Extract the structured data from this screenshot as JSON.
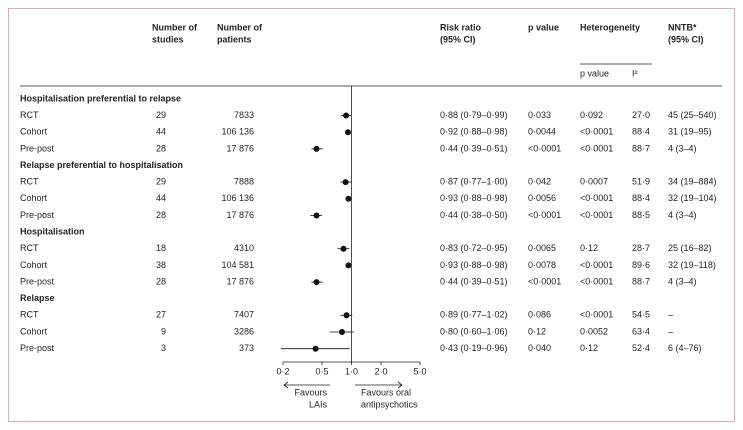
{
  "chart_data": {
    "type": "forest",
    "log_x": true,
    "xlim": [
      0.2,
      5
    ],
    "xticks": [
      {
        "value": 0.2,
        "label": "0·2"
      },
      {
        "value": 0.5,
        "label": "0·5"
      },
      {
        "value": 1,
        "label": "1·0"
      },
      {
        "value": 2,
        "label": "2·0"
      },
      {
        "value": 5,
        "label": "5·0"
      }
    ],
    "color": "#111111",
    "headers": {
      "studies": [
        "Number of",
        "studies"
      ],
      "patients": [
        "Number of",
        "patients"
      ],
      "rr": [
        "Risk ratio",
        "(95% CI)"
      ],
      "p": [
        "p value"
      ],
      "het": [
        "Heterogeneity"
      ],
      "het_p": [
        "p value"
      ],
      "i2": [
        "I²"
      ],
      "nntb": [
        "NNTB*",
        "(95% CI)"
      ]
    },
    "favours": {
      "left": [
        "Favours",
        "LAIs"
      ],
      "right": [
        "Favours oral",
        "antipsychotics"
      ]
    },
    "groups": [
      {
        "name": "Hospitalisation preferential to relapse",
        "rows": [
          {
            "label": "RCT",
            "studies": "29",
            "patients": "7833",
            "rr": 0.88,
            "ci": [
              0.79,
              0.99
            ],
            "rr_label": "0·88 (0·79–0·99)",
            "p": "0·033",
            "het_p": "0·092",
            "i2": "27·0",
            "nntb": "45 (25–540)"
          },
          {
            "label": "Cohort",
            "studies": "44",
            "patients": "106 136",
            "rr": 0.92,
            "ci": [
              0.88,
              0.98
            ],
            "rr_label": "0·92 (0·88–0·98)",
            "p": "0·0044",
            "het_p": "<0·0001",
            "i2": "88·4",
            "nntb": "31 (19–95)"
          },
          {
            "label": "Pre-post",
            "studies": "28",
            "patients": "17 876",
            "rr": 0.44,
            "ci": [
              0.39,
              0.51
            ],
            "rr_label": "0·44 (0·39–0·51)",
            "p": "<0·0001",
            "het_p": "<0·0001",
            "i2": "88·7",
            "nntb": "4 (3–4)"
          }
        ]
      },
      {
        "name": "Relapse preferential to hospitalisation",
        "rows": [
          {
            "label": "RCT",
            "studies": "29",
            "patients": "7888",
            "rr": 0.87,
            "ci": [
              0.77,
              1.0
            ],
            "rr_label": "0·87 (0·77–1·00)",
            "p": "0·042",
            "het_p": "0·0007",
            "i2": "51·9",
            "nntb": "34 (19–884)"
          },
          {
            "label": "Cohort",
            "studies": "44",
            "patients": "106 136",
            "rr": 0.93,
            "ci": [
              0.88,
              0.98
            ],
            "rr_label": "0·93 (0·88–0·98)",
            "p": "0·0056",
            "het_p": "<0·0001",
            "i2": "88·4",
            "nntb": "32 (19–104)"
          },
          {
            "label": "Pre-post",
            "studies": "28",
            "patients": "17 876",
            "rr": 0.44,
            "ci": [
              0.38,
              0.5
            ],
            "rr_label": "0·44 (0·38–0·50)",
            "p": "<0·0001",
            "het_p": "<0·0001",
            "i2": "88·5",
            "nntb": "4 (3–4)"
          }
        ]
      },
      {
        "name": "Hospitalisation",
        "rows": [
          {
            "label": "RCT",
            "studies": "18",
            "patients": "4310",
            "rr": 0.83,
            "ci": [
              0.72,
              0.95
            ],
            "rr_label": "0·83 (0·72–0·95)",
            "p": "0·0065",
            "het_p": "0·12",
            "i2": "28·7",
            "nntb": "25 (16–82)"
          },
          {
            "label": "Cohort",
            "studies": "38",
            "patients": "104 581",
            "rr": 0.93,
            "ci": [
              0.88,
              0.98
            ],
            "rr_label": "0·93 (0·88–0·98)",
            "p": "0·0078",
            "het_p": "<0·0001",
            "i2": "89·6",
            "nntb": "32 (19–118)"
          },
          {
            "label": "Pre-post",
            "studies": "28",
            "patients": "17 876",
            "rr": 0.44,
            "ci": [
              0.39,
              0.51
            ],
            "rr_label": "0·44 (0·39–0·51)",
            "p": "<0·0001",
            "het_p": "<0·0001",
            "i2": "88·7",
            "nntb": "4 (3–4)"
          }
        ]
      },
      {
        "name": "Relapse",
        "rows": [
          {
            "label": "RCT",
            "studies": "27",
            "patients": "7407",
            "rr": 0.89,
            "ci": [
              0.77,
              1.02
            ],
            "rr_label": "0·89 (0·77–1·02)",
            "p": "0·086",
            "het_p": "<0·0001",
            "i2": "54·5",
            "nntb": "–"
          },
          {
            "label": "Cohort",
            "studies": "9",
            "patients": "3286",
            "rr": 0.8,
            "ci": [
              0.6,
              1.06
            ],
            "rr_label": "0·80 (0·60–1·06)",
            "p": "0·12",
            "het_p": "0·0052",
            "i2": "63·4",
            "nntb": "–"
          },
          {
            "label": "Pre-post",
            "studies": "3",
            "patients": "373",
            "rr": 0.43,
            "ci": [
              0.19,
              0.96
            ],
            "rr_label": "0·43 (0·19–0·96)",
            "p": "0·040",
            "het_p": "0·12",
            "i2": "52·4",
            "nntb": "6 (4–76)"
          }
        ]
      }
    ]
  }
}
